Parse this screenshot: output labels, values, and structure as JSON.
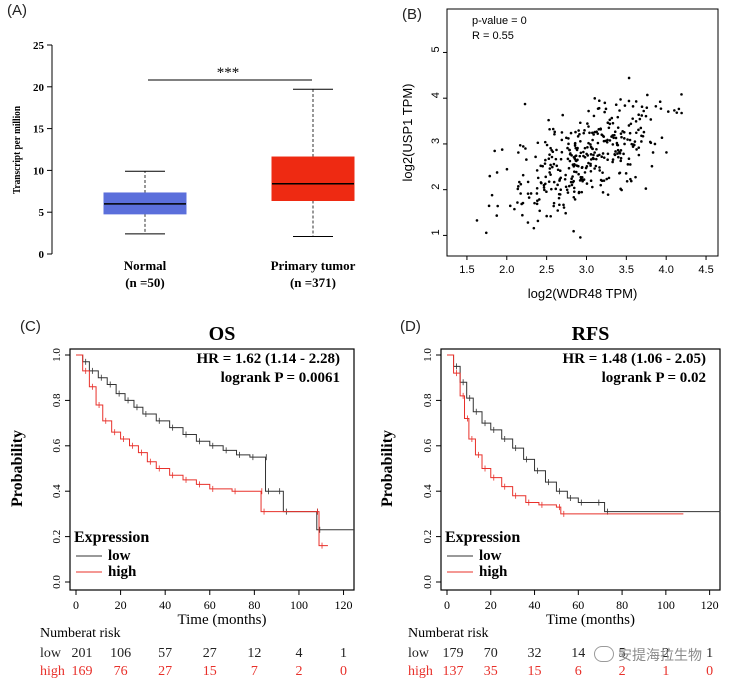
{
  "panels": {
    "a": {
      "label": "(A)"
    },
    "b": {
      "label": "(B)"
    },
    "c": {
      "label": "(C)"
    },
    "d": {
      "label": "(D)"
    }
  },
  "watermark": "安提海拉生物",
  "chart_data": [
    {
      "type": "box",
      "panel": "A",
      "ylabel": "Transcript per million",
      "ylim": [
        0,
        25
      ],
      "yticks": [
        0,
        5,
        10,
        15,
        20,
        25
      ],
      "significance": "***",
      "groups": [
        {
          "name": "Normal",
          "n_label": "(n =50)",
          "color": "#5b6fdb",
          "min": 2.4,
          "q1": 4.8,
          "median": 6.0,
          "q3": 7.3,
          "max": 9.9
        },
        {
          "name": "Primary tumor",
          "n_label": "(n =371)",
          "color": "#ee2a12",
          "min": 2.1,
          "q1": 6.4,
          "median": 8.4,
          "q3": 11.6,
          "max": 19.7
        }
      ]
    },
    {
      "type": "scatter",
      "panel": "B",
      "xlabel": "log2(WDR48 TPM)",
      "ylabel": "log2(USP1 TPM)",
      "xlim": [
        1.25,
        4.65
      ],
      "ylim": [
        0.55,
        5.95
      ],
      "xticks": [
        1.5,
        2.0,
        2.5,
        3.0,
        3.5,
        4.0,
        4.5
      ],
      "yticks": [
        1,
        2,
        3,
        4,
        5
      ],
      "annotations": [
        "p-value = 0",
        "R = 0.55"
      ],
      "fit": {
        "slope": 0.85,
        "intercept": 0.15,
        "n": 371,
        "noise_sd": 0.52
      }
    },
    {
      "type": "line",
      "panel": "C",
      "title": "OS",
      "hr_text": "HR = 1.62 (1.14 - 2.28)",
      "logrank_text": "logrank P = 0.0061",
      "xlabel": "Time (months)",
      "ylabel": "Probability",
      "xlim": [
        0,
        122
      ],
      "ylim": [
        0,
        1.0
      ],
      "xticks": [
        0,
        20,
        40,
        60,
        80,
        100,
        120
      ],
      "yticks": [
        0.0,
        0.2,
        0.4,
        0.6,
        0.8,
        1.0
      ],
      "legend_title": "Expression",
      "series": [
        {
          "name": "low",
          "color": "#333333",
          "points": [
            [
              0,
              1.0
            ],
            [
              3,
              0.97
            ],
            [
              6,
              0.93
            ],
            [
              10,
              0.9
            ],
            [
              14,
              0.87
            ],
            [
              18,
              0.83
            ],
            [
              22,
              0.8
            ],
            [
              26,
              0.77
            ],
            [
              30,
              0.74
            ],
            [
              36,
              0.71
            ],
            [
              42,
              0.68
            ],
            [
              48,
              0.65
            ],
            [
              54,
              0.62
            ],
            [
              60,
              0.6
            ],
            [
              66,
              0.58
            ],
            [
              72,
              0.56
            ],
            [
              78,
              0.55
            ],
            [
              84,
              0.55
            ],
            [
              85,
              0.4
            ],
            [
              90,
              0.4
            ],
            [
              93,
              0.31
            ],
            [
              107,
              0.31
            ],
            [
              108,
              0.23
            ],
            [
              125,
              0.23
            ]
          ]
        },
        {
          "name": "high",
          "color": "#e8302a",
          "points": [
            [
              0,
              1.0
            ],
            [
              3,
              0.93
            ],
            [
              6,
              0.86
            ],
            [
              9,
              0.78
            ],
            [
              12,
              0.71
            ],
            [
              16,
              0.66
            ],
            [
              20,
              0.63
            ],
            [
              24,
              0.6
            ],
            [
              28,
              0.57
            ],
            [
              32,
              0.53
            ],
            [
              36,
              0.5
            ],
            [
              42,
              0.47
            ],
            [
              48,
              0.45
            ],
            [
              54,
              0.43
            ],
            [
              60,
              0.41
            ],
            [
              70,
              0.4
            ],
            [
              82,
              0.4
            ],
            [
              83,
              0.31
            ],
            [
              107,
              0.31
            ],
            [
              109,
              0.16
            ],
            [
              113,
              0.16
            ]
          ]
        }
      ],
      "risk_table": {
        "header": "Numberat risk",
        "times": [
          0,
          20,
          40,
          60,
          80,
          100,
          120
        ],
        "rows": [
          {
            "label": "low",
            "color": "#222222",
            "counts": [
              "201",
              "106",
              "57",
              "27",
              "12",
              "4",
              "1"
            ]
          },
          {
            "label": "high",
            "color": "#e8302a",
            "counts": [
              "169",
              "76",
              "27",
              "15",
              "7",
              "2",
              "0"
            ]
          }
        ]
      }
    },
    {
      "type": "line",
      "panel": "D",
      "title": "RFS",
      "hr_text": "HR = 1.48 (1.06 - 2.05)",
      "logrank_text": "logrank P = 0.02",
      "xlabel": "Time (months)",
      "ylabel": "Probability",
      "xlim": [
        0,
        122
      ],
      "ylim": [
        0,
        1.0
      ],
      "xticks": [
        0,
        20,
        40,
        60,
        80,
        100,
        120
      ],
      "yticks": [
        0.0,
        0.2,
        0.4,
        0.6,
        0.8,
        1.0
      ],
      "legend_title": "Expression",
      "series": [
        {
          "name": "low",
          "color": "#333333",
          "points": [
            [
              0,
              1.0
            ],
            [
              3,
              0.95
            ],
            [
              6,
              0.88
            ],
            [
              9,
              0.81
            ],
            [
              12,
              0.75
            ],
            [
              16,
              0.7
            ],
            [
              20,
              0.67
            ],
            [
              25,
              0.63
            ],
            [
              30,
              0.59
            ],
            [
              35,
              0.54
            ],
            [
              40,
              0.49
            ],
            [
              45,
              0.44
            ],
            [
              50,
              0.4
            ],
            [
              55,
              0.37
            ],
            [
              60,
              0.35
            ],
            [
              68,
              0.35
            ],
            [
              72,
              0.31
            ],
            [
              125,
              0.31
            ]
          ]
        },
        {
          "name": "high",
          "color": "#e8302a",
          "points": [
            [
              0,
              1.0
            ],
            [
              3,
              0.92
            ],
            [
              6,
              0.82
            ],
            [
              8,
              0.72
            ],
            [
              10,
              0.63
            ],
            [
              13,
              0.56
            ],
            [
              16,
              0.5
            ],
            [
              20,
              0.46
            ],
            [
              25,
              0.42
            ],
            [
              30,
              0.38
            ],
            [
              36,
              0.35
            ],
            [
              42,
              0.34
            ],
            [
              50,
              0.33
            ],
            [
              52,
              0.3
            ],
            [
              108,
              0.3
            ]
          ]
        }
      ],
      "risk_table": {
        "header": "Numberat risk",
        "times": [
          0,
          20,
          40,
          60,
          80,
          100,
          120
        ],
        "rows": [
          {
            "label": "low",
            "color": "#222222",
            "counts": [
              "179",
              "70",
              "32",
              "14",
              "5",
              "2",
              "1"
            ]
          },
          {
            "label": "high",
            "color": "#e8302a",
            "counts": [
              "137",
              "35",
              "15",
              "6",
              "2",
              "1",
              "0"
            ]
          }
        ]
      }
    }
  ]
}
